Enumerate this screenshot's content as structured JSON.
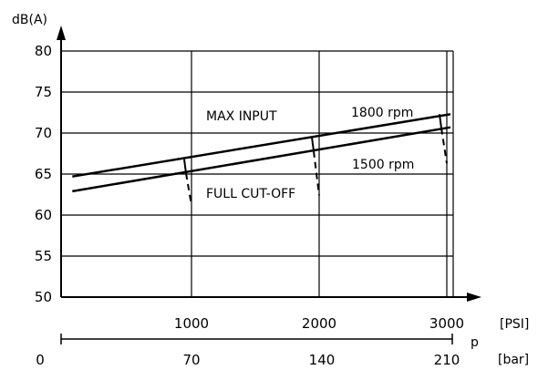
{
  "chart_data": {
    "type": "line",
    "y_axis": {
      "label": "dB(A)",
      "ylim": [
        50,
        80
      ],
      "ticks": [
        "50",
        "55",
        "60",
        "65",
        "70",
        "75",
        "80"
      ]
    },
    "x_axis_psi": {
      "unit": "[PSI]",
      "range": [
        0,
        3000
      ],
      "ticks": [
        {
          "value": 1000,
          "label": "1000"
        },
        {
          "value": 2000,
          "label": "2000"
        },
        {
          "value": 3000,
          "label": "3000"
        }
      ]
    },
    "x_axis_bar": {
      "unit": "[bar]",
      "ticks": [
        {
          "value": 0,
          "label": "0"
        },
        {
          "value": 70,
          "label": "70"
        },
        {
          "value": 140,
          "label": "140"
        },
        {
          "value": 210,
          "label": "210"
        }
      ]
    },
    "x_symbol": "p",
    "grid": true,
    "series": [
      {
        "name": "1800 rpm",
        "x": [
          100,
          3000
        ],
        "y": [
          64.7,
          72.3
        ]
      },
      {
        "name": "1500 rpm",
        "x": [
          100,
          3000
        ],
        "y": [
          62.9,
          70.7
        ]
      }
    ],
    "cutoff_drops": [
      {
        "x": 1000,
        "from_1800": 66.8,
        "from_1500": 65.1,
        "to": 61.2
      },
      {
        "x": 2000,
        "from_1800": 69.5,
        "from_1500": 67.8,
        "to": 62.4
      },
      {
        "x": 3000,
        "from_1800": 72.3,
        "from_1500": 70.6,
        "to": 66.3
      }
    ],
    "annotations": {
      "max_input": "MAX INPUT",
      "full_cutoff": "FULL CUT-OFF",
      "label_1800": "1800 rpm",
      "label_1500": "1500 rpm"
    }
  }
}
